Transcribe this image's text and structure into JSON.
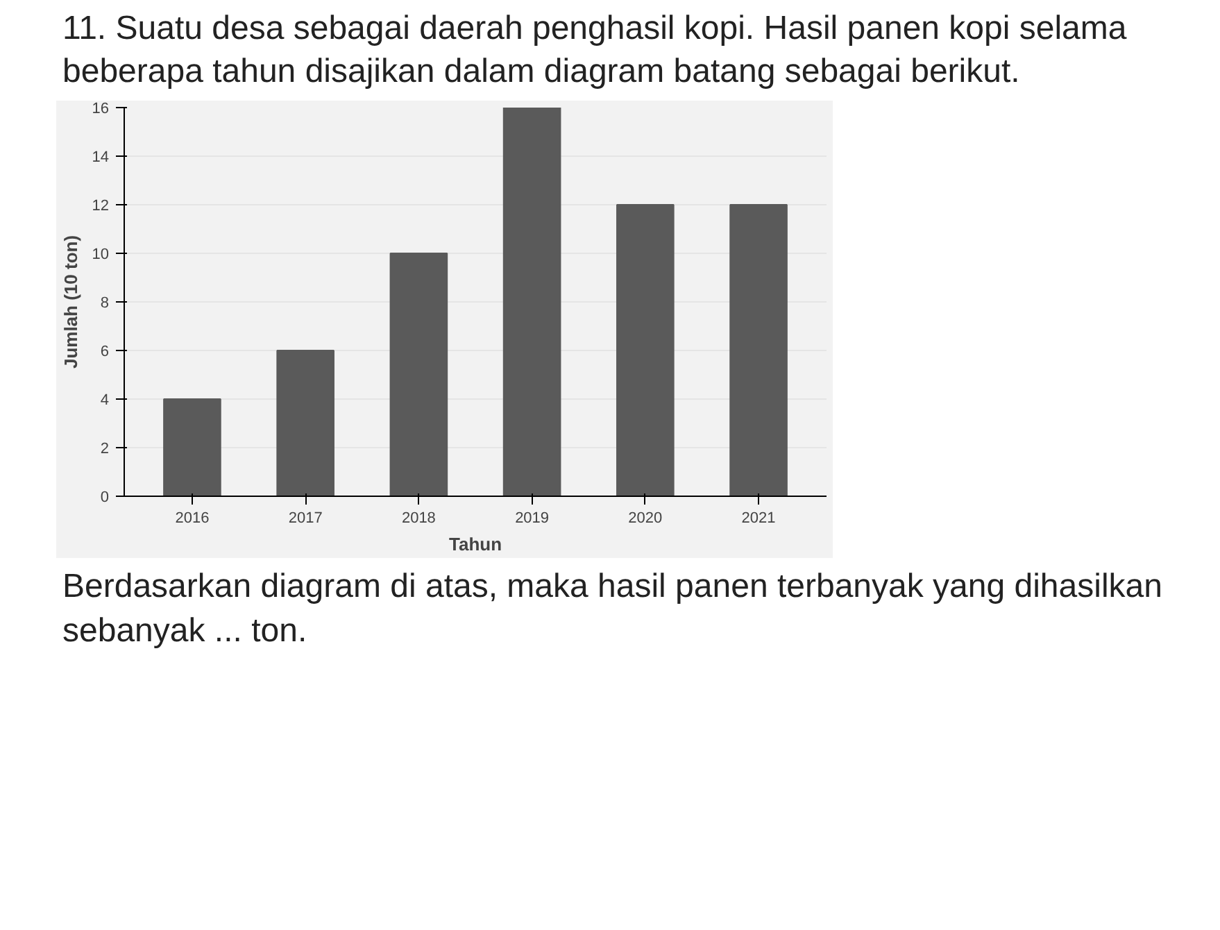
{
  "chart_data": {
    "type": "bar",
    "title": "11. Suatu desa sebagai daerah penghasil kopi. Hasil panen kopi selama beberapa tahun disajikan dalam diagram batang sebagai berikut.",
    "xlabel": "Tahun",
    "ylabel": "Jumlah (10 ton)",
    "categories": [
      "2016",
      "2017",
      "2018",
      "2019",
      "2020",
      "2021"
    ],
    "values": [
      4,
      6,
      10,
      16,
      12,
      12
    ],
    "color": "#5a5a5a",
    "ylim": [
      0,
      16
    ],
    "yticks": [
      0,
      2,
      4,
      6,
      8,
      10,
      12,
      14,
      16
    ],
    "grid": "y",
    "annotations": [
      "Berdasarkan diagram di atas, maka hasil panen terbanyak yang dihasilkan sebanyak ... ton."
    ]
  }
}
